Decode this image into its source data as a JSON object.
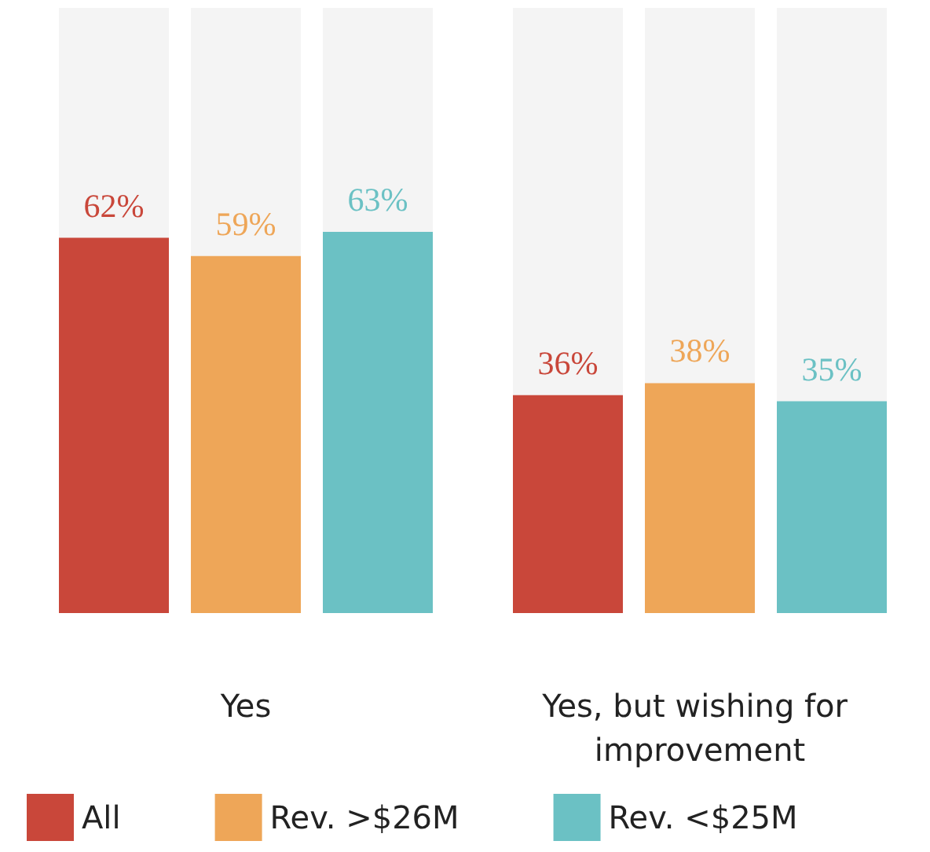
{
  "chart_data": {
    "type": "bar",
    "categories": [
      "Yes",
      "Yes, but wishing for improvement"
    ],
    "series": [
      {
        "name": "All",
        "color": "#c9473a",
        "values": [
          62,
          36
        ],
        "value_labels": [
          "62%",
          "36%"
        ]
      },
      {
        "name": "Rev. >$26M",
        "color": "#eea658",
        "values": [
          59,
          38
        ],
        "value_labels": [
          "59%",
          "38%"
        ]
      },
      {
        "name": "Rev. <$25M",
        "color": "#6bc1c4",
        "values": [
          63,
          35
        ],
        "value_labels": [
          "63%",
          "35%"
        ]
      }
    ],
    "ylim": [
      0,
      100
    ],
    "tick_labels": "x",
    "legend": "bottom"
  }
}
